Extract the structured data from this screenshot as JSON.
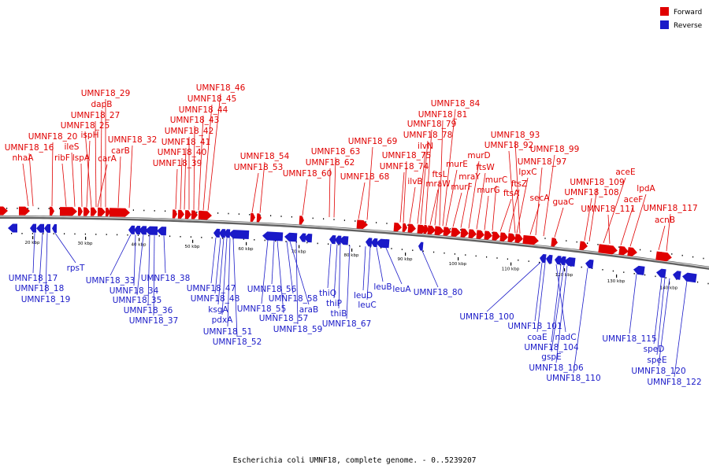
{
  "title": "Escherichia coli UMNF18, complete genome. - 0..5239207",
  "legend": [
    {
      "label": "Forward",
      "color": "#e00000"
    },
    {
      "label": "Reverse",
      "color": "#1a1ac8"
    }
  ],
  "colors": {
    "forward": "#e00000",
    "reverse": "#1a1ac8",
    "backbone": "#888888"
  },
  "kbp_ticks": [
    "20 kbp",
    "30 kbp",
    "40 kbp",
    "50 kbp",
    "60 kbp",
    "70 kbp",
    "80 kbp",
    "90 kbp",
    "100 kbp",
    "110 kbp",
    "120 kbp",
    "130 kbp",
    "140 kbp"
  ],
  "forward_labels": [
    "nhaA",
    "UMNF18_16",
    "UMNF18_20",
    "ribF",
    "ileS",
    "lspA",
    "ispH",
    "UMNF18_25",
    "UMNF18_27",
    "carA",
    "dapB",
    "UMNF18_29",
    "carB",
    "UMNF18_32",
    "UMNF18_39",
    "UMNF18_40",
    "UMNF18_41",
    "UMNF18_42",
    "UMNF18_43",
    "UMNF18_44",
    "UMNF18_45",
    "UMNF18_46",
    "UMNF18_53",
    "UMNF18_54",
    "UMNF18_60",
    "UMNF18_62",
    "UMNF18_63",
    "UMNF18_68",
    "UMNF18_69",
    "UMNF18_74",
    "UMNF18_75",
    "ilvB",
    "ilvN",
    "UMNF18_78",
    "UMNF18_79",
    "mraW",
    "ftsL",
    "UMNF18_81",
    "UMNF18_84",
    "murE",
    "murF",
    "mraY",
    "murD",
    "ftsW",
    "murG",
    "murC",
    "ftsA",
    "ftsZ",
    "lpxC",
    "UMNF18_92",
    "UMNF18_93",
    "secA",
    "UMNF18_97",
    "UMNF18_99",
    "guaC",
    "UMNF18_108",
    "UMNF18_109",
    "aceE",
    "UMNF18_111",
    "aceF",
    "lpdA",
    "acnB",
    "UMNF18_117"
  ],
  "reverse_labels": [
    "UMNF18_17",
    "UMNF18_18",
    "UMNF18_19",
    "rpsT",
    "UMNF18_33",
    "UMNF18_34",
    "UMNF18_35",
    "UMNF18_36",
    "UMNF18_37",
    "UMNF18_38",
    "UMNF18_47",
    "UMNF18_48",
    "ksgA",
    "pdxA",
    "UMNF18_51",
    "UMNF18_52",
    "UMNF18_55",
    "UMNF18_56",
    "UMNF18_57",
    "UMNF18_58",
    "araB",
    "UMNF18_59",
    "thiQ",
    "thiP",
    "thiB",
    "UMNF18_67",
    "leuD",
    "leuC",
    "leuB",
    "leuA",
    "UMNF18_80",
    "UMNF18_100",
    "UMNF18_101",
    "coaE",
    "nadC",
    "UMNF18_104",
    "gspE",
    "UMNF18_106",
    "UMNF18_110",
    "UMNF18_115",
    "speD",
    "speE",
    "UMNF18_120",
    "UMNF18_122"
  ]
}
